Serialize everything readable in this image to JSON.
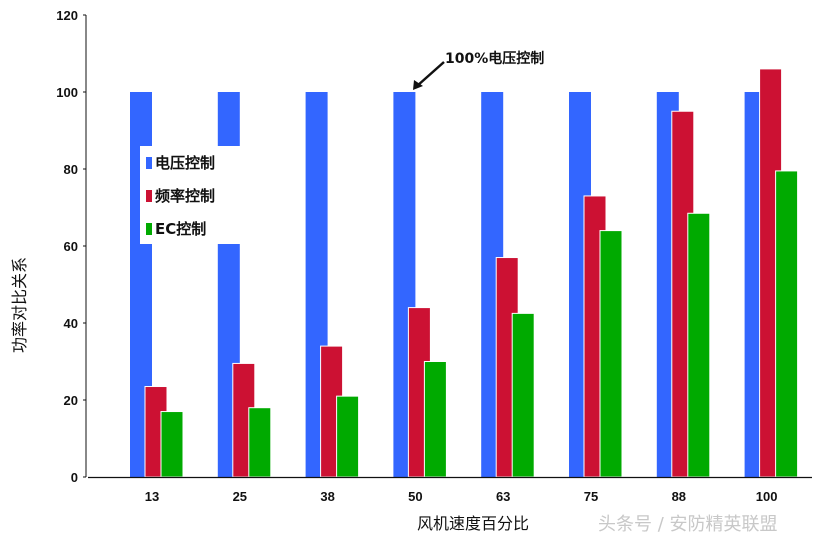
{
  "chart_data": {
    "type": "bar",
    "title": "",
    "xlabel": "风机速度百分比",
    "ylabel": "功率对比关系",
    "ylim": [
      0,
      120
    ],
    "yticks": [
      0,
      20,
      40,
      60,
      80,
      100,
      120
    ],
    "categories": [
      "13",
      "25",
      "38",
      "50",
      "63",
      "75",
      "88",
      "100"
    ],
    "series": [
      {
        "name": "电压控制",
        "color": "#3366ff",
        "values": [
          100,
          100,
          100,
          100,
          100,
          100,
          100,
          100
        ]
      },
      {
        "name": "频率控制",
        "color": "#cc1133",
        "values": [
          23.5,
          29.5,
          34,
          44,
          57,
          73,
          95,
          106
        ]
      },
      {
        "name": "EC控制",
        "color": "#00aa00",
        "values": [
          17,
          18,
          21,
          30,
          42.5,
          64,
          68.5,
          79.5
        ]
      }
    ],
    "legend_position": "upper-left inside",
    "grid": false,
    "annotations": [
      {
        "text": "100%电压控制",
        "points_to": "category 50, 电压控制 bar top"
      }
    ]
  },
  "legend": {
    "items": [
      {
        "label": "电压控制",
        "color": "#3366ff"
      },
      {
        "label": "频率控制",
        "color": "#cc1133"
      },
      {
        "label": "EC控制",
        "color": "#00aa00"
      }
    ]
  },
  "annotation": {
    "text": "100%电压控制"
  },
  "watermark": {
    "text": "头条号 / 安防精英联盟"
  }
}
